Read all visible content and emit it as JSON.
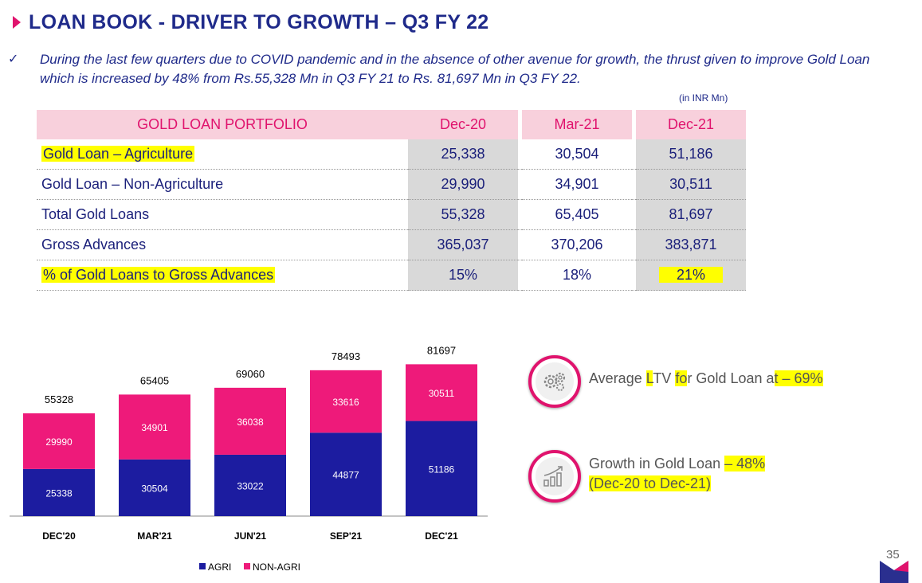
{
  "title": "LOAN BOOK  - DRIVER TO GROWTH – Q3 FY 22",
  "bullet": {
    "check": "✓",
    "text": "During the last few quarters due to COVID pandemic and in the absence of other avenue for growth, the thrust given to improve Gold Loan which is increased by 48% from Rs.55,328 Mn in Q3 FY 21 to Rs. 81,697 Mn in Q3 FY 22."
  },
  "unit_note": "(in INR Mn)",
  "table": {
    "header": [
      "GOLD LOAN PORTFOLIO",
      "Dec-20",
      "Mar-21",
      "Dec-21"
    ],
    "rows": [
      {
        "label": "Gold Loan – Agriculture",
        "values": [
          "25,338",
          "30,504",
          "51,186"
        ]
      },
      {
        "label": "Gold Loan – Non-Agriculture",
        "values": [
          "29,990",
          "34,901",
          "30,511"
        ]
      },
      {
        "label": "Total Gold Loans",
        "values": [
          "55,328",
          "65,405",
          "81,697"
        ]
      },
      {
        "label": "Gross Advances",
        "values": [
          "365,037",
          "370,206",
          "383,871"
        ]
      },
      {
        "label": "% of Gold Loans to Gross Advances",
        "values": [
          "15%",
          "18%",
          "21%"
        ]
      }
    ]
  },
  "chart_data": {
    "type": "bar",
    "stacked": true,
    "categories": [
      "DEC'20",
      "MAR'21",
      "JUN'21",
      "SEP'21",
      "DEC'21"
    ],
    "series": [
      {
        "name": "AGRI",
        "values": [
          25338,
          30504,
          33022,
          44877,
          51186
        ]
      },
      {
        "name": "NON-AGRI",
        "values": [
          29990,
          34901,
          36038,
          33616,
          30511
        ]
      }
    ],
    "totals": [
      55328,
      65405,
      69060,
      78493,
      81697
    ],
    "legend_position": "bottom",
    "colors": {
      "AGRI": "#1c1ca0",
      "NON-AGRI": "#ee1a7a"
    },
    "ylim": [
      0,
      90000
    ],
    "grid": false
  },
  "notes": [
    {
      "icon": "gears-icon",
      "parts": [
        {
          "t": "Average ",
          "h": false
        },
        {
          "t": "L",
          "h": true
        },
        {
          "t": "TV ",
          "h": false
        },
        {
          "t": "fo",
          "h": true
        },
        {
          "t": "r Gold Loan a",
          "h": false
        },
        {
          "t": "t – 69%",
          "h": true
        }
      ]
    },
    {
      "icon": "growth-chart-icon",
      "parts": [
        {
          "t": "Growth in Gold Loan ",
          "h": false
        },
        {
          "t": "– 48%",
          "h": true
        }
      ],
      "parts2": [
        {
          "t": "(Dec-20 to Dec-21)",
          "h": true
        }
      ]
    }
  ],
  "page_number": "35",
  "colors": {
    "title": "#1f2a8a",
    "accent": "#e0136d",
    "highlight": "#ffff00"
  }
}
